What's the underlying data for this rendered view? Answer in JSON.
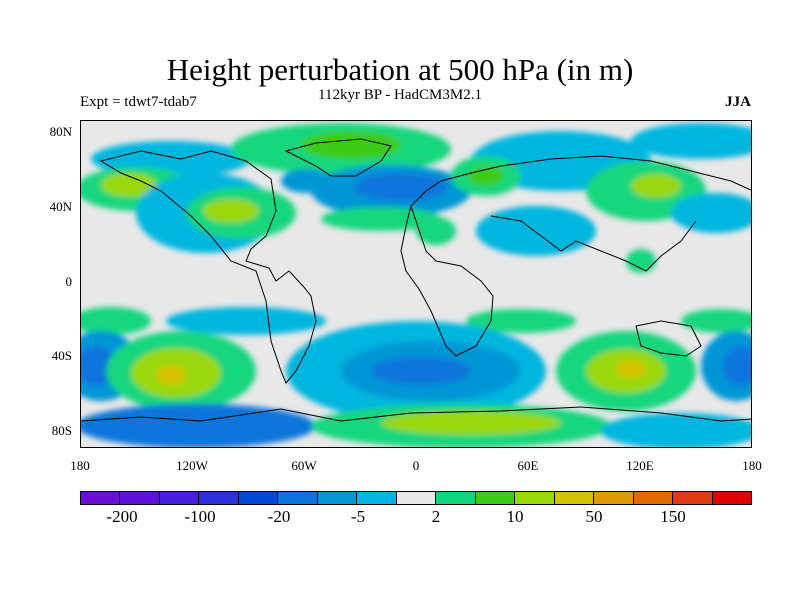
{
  "title": "Height perturbation at 500 hPa (in m)",
  "subtitle": "112kyr BP - HadCM3M2.1",
  "left_label": "Expt = tdwt7-tdab7",
  "right_label": "JJA",
  "lat_labels": [
    "80N",
    "40N",
    "0",
    "40S",
    "80S"
  ],
  "lon_labels": [
    "180",
    "120W",
    "60W",
    "0",
    "60E",
    "120E",
    "180"
  ],
  "colorbar": {
    "colors": [
      "#6a0fd6",
      "#5c12d8",
      "#4a1ee0",
      "#2e2edb",
      "#0048d8",
      "#0a74dc",
      "#0696d6",
      "#00b6df",
      "#e8e8e8",
      "#12d67e",
      "#3ccc18",
      "#9ad808",
      "#d4c200",
      "#e09a00",
      "#e06a00",
      "#e03a14",
      "#e00000"
    ],
    "labels": [
      "-200",
      "-100",
      "-20",
      "-5",
      "2",
      "10",
      "50",
      "150"
    ]
  }
}
